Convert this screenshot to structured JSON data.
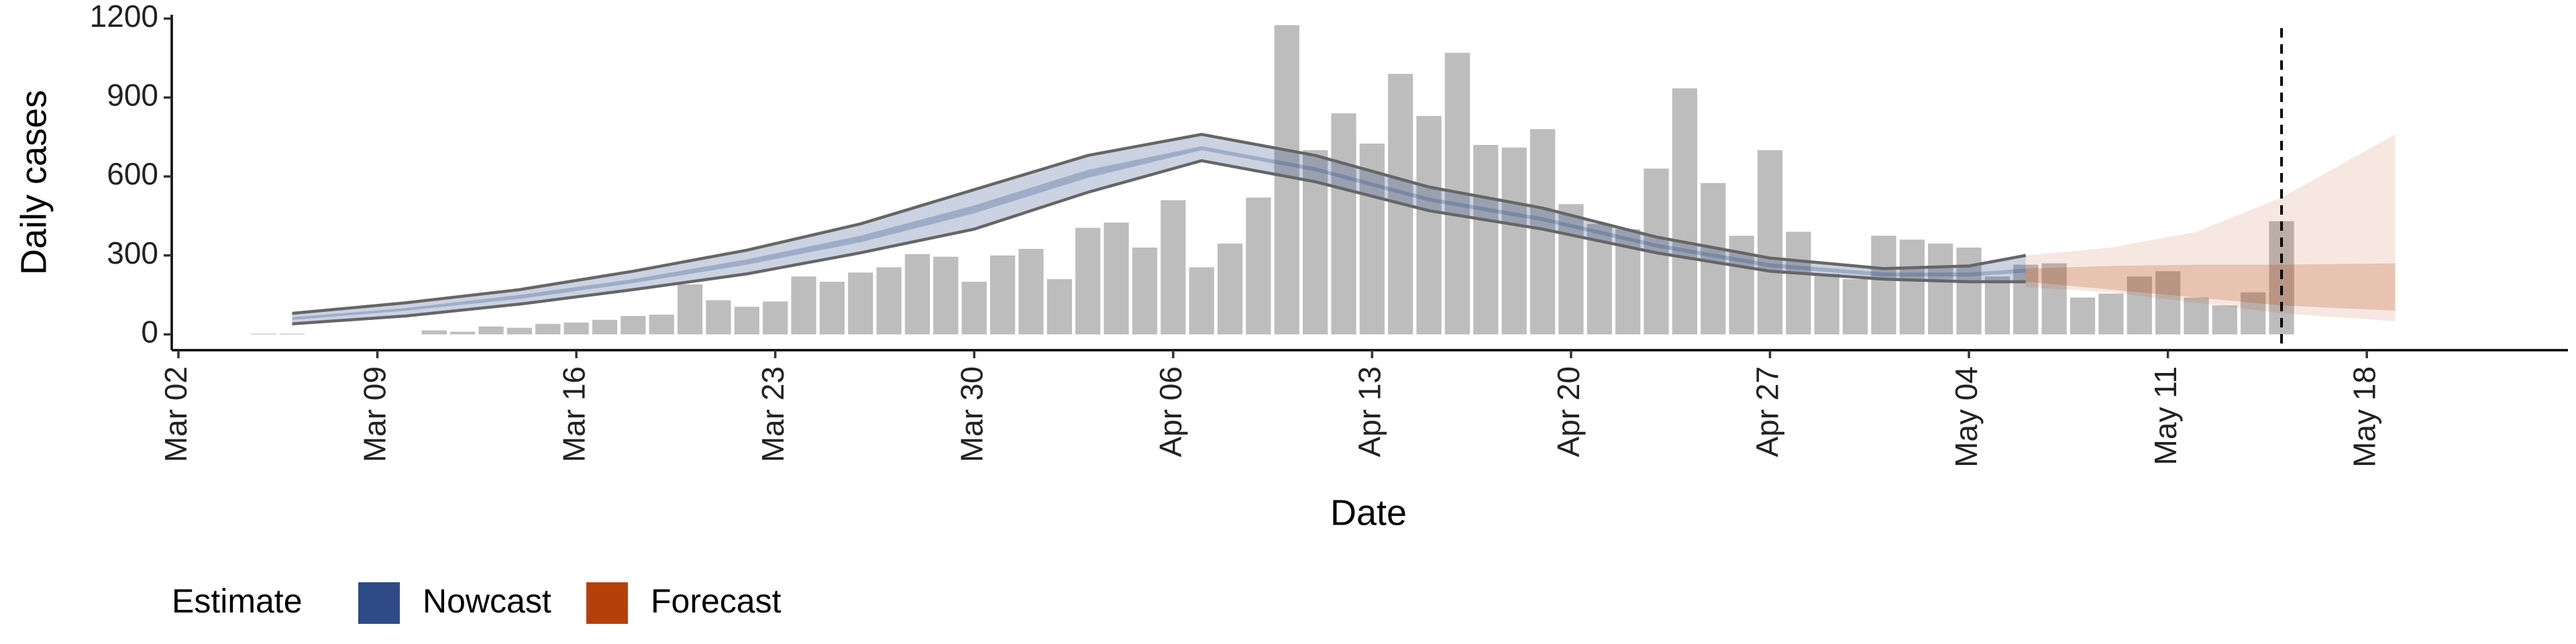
{
  "chart_data": {
    "type": "bar",
    "x_label": "Date",
    "y_label": "Daily cases",
    "color": "#bdbdbd",
    "x": [
      "Mar 05",
      "Mar 06",
      "Mar 11",
      "Mar 12",
      "Mar 13",
      "Mar 14",
      "Mar 15",
      "Mar 16",
      "Mar 17",
      "Mar 18",
      "Mar 19",
      "Mar 20",
      "Mar 21",
      "Mar 22",
      "Mar 23",
      "Mar 24",
      "Mar 25",
      "Mar 26",
      "Mar 27",
      "Mar 28",
      "Mar 29",
      "Mar 30",
      "Mar 31",
      "Apr 01",
      "Apr 02",
      "Apr 03",
      "Apr 04",
      "Apr 05",
      "Apr 06",
      "Apr 07",
      "Apr 08",
      "Apr 09",
      "Apr 10",
      "Apr 11",
      "Apr 12",
      "Apr 13",
      "Apr 14",
      "Apr 15",
      "Apr 16",
      "Apr 17",
      "Apr 18",
      "Apr 19",
      "Apr 20",
      "Apr 21",
      "Apr 22",
      "Apr 23",
      "Apr 24",
      "Apr 25",
      "Apr 26",
      "Apr 27",
      "Apr 28",
      "Apr 29",
      "Apr 30",
      "May 01",
      "May 02",
      "May 03",
      "May 04",
      "May 05",
      "May 06",
      "May 07",
      "May 08",
      "May 09",
      "May 10",
      "May 11",
      "May 12",
      "May 13",
      "May 14",
      "May 15"
    ],
    "values": [
      3,
      3,
      15,
      10,
      30,
      25,
      40,
      45,
      55,
      70,
      75,
      190,
      130,
      105,
      125,
      220,
      200,
      235,
      255,
      305,
      295,
      200,
      300,
      325,
      210,
      405,
      425,
      330,
      510,
      255,
      345,
      520,
      1175,
      700,
      840,
      725,
      990,
      830,
      1070,
      720,
      710,
      780,
      495,
      420,
      400,
      630,
      935,
      575,
      375,
      700,
      390,
      230,
      210,
      375,
      360,
      345,
      330,
      220,
      265,
      270,
      140,
      155,
      220,
      240,
      140,
      110,
      160,
      430
    ],
    "xlim": [
      "Mar 02",
      "May 23"
    ],
    "xticks": [
      "Mar 02",
      "Mar 09",
      "Mar 16",
      "Mar 23",
      "Mar 30",
      "Apr 06",
      "Apr 13",
      "Apr 20",
      "Apr 27",
      "May 04",
      "May 11",
      "May 18"
    ],
    "ylim": [
      -60,
      1240
    ],
    "yticks": [
      0,
      300,
      600,
      900,
      1200
    ],
    "vline": "May 15",
    "legend_title": "Estimate",
    "ribbons": [
      {
        "name": "Nowcast",
        "color": "#2e4a87",
        "x": [
          "Mar 06",
          "Mar 10",
          "Mar 14",
          "Mar 18",
          "Mar 22",
          "Mar 26",
          "Mar 30",
          "Apr 03",
          "Apr 07",
          "Apr 11",
          "Apr 15",
          "Apr 19",
          "Apr 23",
          "Apr 27",
          "May 01",
          "May 04",
          "May 06"
        ],
        "outer_upper": [
          80,
          120,
          170,
          240,
          320,
          420,
          550,
          680,
          760,
          680,
          560,
          480,
          370,
          290,
          250,
          260,
          300
        ],
        "outer_lower": [
          40,
          70,
          115,
          170,
          230,
          310,
          400,
          540,
          660,
          580,
          470,
          400,
          310,
          240,
          210,
          200,
          200
        ],
        "inner_upper": [
          65,
          100,
          150,
          210,
          285,
          375,
          490,
          625,
          715,
          635,
          520,
          445,
          345,
          270,
          235,
          235,
          250
        ],
        "inner_lower": [
          55,
          90,
          135,
          195,
          265,
          350,
          460,
          595,
          700,
          620,
          505,
          430,
          330,
          255,
          220,
          220,
          235
        ]
      },
      {
        "name": "Forecast",
        "color": "#b5400a",
        "x": [
          "May 06",
          "May 09",
          "May 12",
          "May 15",
          "May 19"
        ],
        "outer_upper": [
          300,
          330,
          390,
          520,
          760
        ],
        "outer_lower": [
          180,
          160,
          120,
          80,
          50
        ],
        "inner_upper": [
          250,
          260,
          265,
          265,
          270
        ],
        "inner_lower": [
          200,
          170,
          140,
          110,
          90
        ]
      }
    ]
  }
}
